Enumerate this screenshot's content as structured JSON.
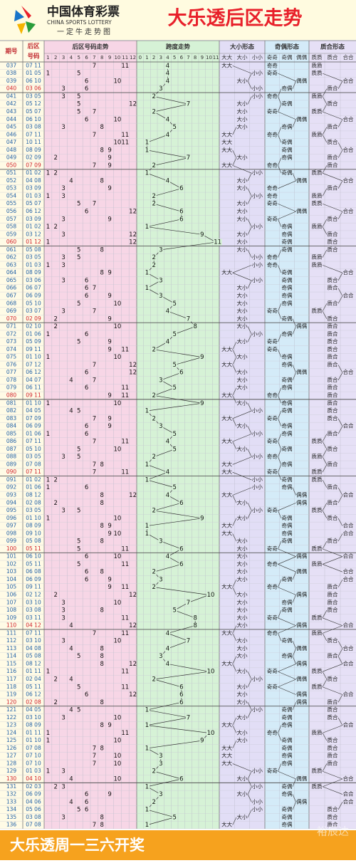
{
  "header": {
    "logo_cn": "中国体育彩票",
    "logo_en": "CHINA SPORTS LOTTERY",
    "logo_sub": "一定牛走势图",
    "title": "大乐透后区走势"
  },
  "columns": {
    "period": "期号",
    "nums_top": "后区",
    "nums_bottom": "号码",
    "balls": "后区号码走势",
    "span": "跨度走势",
    "size": "大小形态",
    "parity": "奇偶形态",
    "prime": "质合形态",
    "ball_axis": [
      1,
      2,
      3,
      4,
      5,
      6,
      7,
      8,
      9,
      10,
      11,
      12
    ],
    "span_axis": [
      0,
      1,
      2,
      3,
      4,
      5,
      6,
      7,
      8,
      9,
      10,
      11
    ],
    "size_axis": [
      "大大",
      "大小",
      "小小"
    ],
    "parity_axis": [
      "奇奇",
      "奇偶",
      "偶偶"
    ],
    "prime_axis": [
      "质质",
      "质合",
      "合合"
    ]
  },
  "rows": [
    [
      "037",
      "07 11",
      [
        7,
        11
      ],
      4,
      "大大",
      "奇奇",
      "质质"
    ],
    [
      "038",
      "01 05",
      [
        1,
        5
      ],
      4,
      "小小",
      "奇奇",
      "质质"
    ],
    [
      "039",
      "06 10",
      [
        6,
        10
      ],
      4,
      "大小",
      "偶偶",
      "合合"
    ],
    [
      "040",
      "03 06",
      [
        3,
        6
      ],
      3,
      "小小",
      "奇偶",
      "质合"
    ],
    [
      "041",
      "03 05",
      [
        3,
        5
      ],
      2,
      "小小",
      "奇奇",
      "质质"
    ],
    [
      "042",
      "05 12",
      [
        5,
        12
      ],
      7,
      "大小",
      "奇偶",
      "质合"
    ],
    [
      "043",
      "05 07",
      [
        5,
        7
      ],
      2,
      "大小",
      "奇奇",
      "质质"
    ],
    [
      "044",
      "06 10",
      [
        6,
        10
      ],
      4,
      "大小",
      "偶偶",
      "合合"
    ],
    [
      "045",
      "03 08",
      [
        3,
        8
      ],
      5,
      "大小",
      "奇偶",
      "质合"
    ],
    [
      "046",
      "07 11",
      [
        7,
        11
      ],
      4,
      "大大",
      "奇奇",
      "质质"
    ],
    [
      "047",
      "10 11",
      [
        10,
        11
      ],
      1,
      "大大",
      "奇偶",
      "质合"
    ],
    [
      "048",
      "08 09",
      [
        8,
        9
      ],
      1,
      "大大",
      "奇偶",
      "合合"
    ],
    [
      "049",
      "02 09",
      [
        2,
        9
      ],
      7,
      "大小",
      "奇偶",
      "质合"
    ],
    [
      "050",
      "07 09",
      [
        7,
        9
      ],
      2,
      "大大",
      "奇奇",
      "质合"
    ],
    [
      "051",
      "01 02",
      [
        1,
        2
      ],
      1,
      "小小",
      "奇偶",
      "质质"
    ],
    [
      "052",
      "04 08",
      [
        4,
        8
      ],
      4,
      "大小",
      "偶偶",
      "合合"
    ],
    [
      "053",
      "03 09",
      [
        3,
        9
      ],
      6,
      "大小",
      "奇奇",
      "质合"
    ],
    [
      "054",
      "01 03",
      [
        1,
        3
      ],
      2,
      "小小",
      "奇奇",
      "质质"
    ],
    [
      "055",
      "05 07",
      [
        5,
        7
      ],
      2,
      "大小",
      "奇奇",
      "质质"
    ],
    [
      "056",
      "06 12",
      [
        6,
        12
      ],
      6,
      "大小",
      "偶偶",
      "合合"
    ],
    [
      "057",
      "03 09",
      [
        3,
        9
      ],
      6,
      "大小",
      "奇奇",
      "质合"
    ],
    [
      "058",
      "01 02",
      [
        1,
        2
      ],
      1,
      "小小",
      "奇偶",
      "质质"
    ],
    [
      "059",
      "03 12",
      [
        3,
        12
      ],
      9,
      "大小",
      "奇偶",
      "质合"
    ],
    [
      "060",
      "01 12",
      [
        1,
        12
      ],
      11,
      "大小",
      "奇偶",
      "质合"
    ],
    [
      "061",
      "05 08",
      [
        5,
        8
      ],
      3,
      "大小",
      "奇偶",
      "质合"
    ],
    [
      "062",
      "03 05",
      [
        3,
        5
      ],
      2,
      "小小",
      "奇奇",
      "质质"
    ],
    [
      "063",
      "01 03",
      [
        1,
        3
      ],
      2,
      "小小",
      "奇奇",
      "质质"
    ],
    [
      "064",
      "08 09",
      [
        8,
        9
      ],
      1,
      "大大",
      "奇偶",
      "合合"
    ],
    [
      "065",
      "03 06",
      [
        3,
        6
      ],
      3,
      "小小",
      "奇偶",
      "质合"
    ],
    [
      "066",
      "06 07",
      [
        6,
        7
      ],
      1,
      "大小",
      "奇偶",
      "质合"
    ],
    [
      "067",
      "06 09",
      [
        6,
        9
      ],
      3,
      "大小",
      "奇偶",
      "合合"
    ],
    [
      "068",
      "05 10",
      [
        5,
        10
      ],
      5,
      "大小",
      "奇偶",
      "质合"
    ],
    [
      "069",
      "03 07",
      [
        3,
        7
      ],
      4,
      "大小",
      "奇奇",
      "质质"
    ],
    [
      "070",
      "02 09",
      [
        2,
        9
      ],
      7,
      "大小",
      "奇偶",
      "质合"
    ],
    [
      "071",
      "02 10",
      [
        2,
        10
      ],
      8,
      "大小",
      "偶偶",
      "质合"
    ],
    [
      "072",
      "01 06",
      [
        1,
        6
      ],
      5,
      "小小",
      "奇偶",
      "质合"
    ],
    [
      "073",
      "05 09",
      [
        5,
        9
      ],
      4,
      "大小",
      "奇奇",
      "质合"
    ],
    [
      "074",
      "09 11",
      [
        9,
        11
      ],
      2,
      "大大",
      "奇奇",
      "质合"
    ],
    [
      "075",
      "01 10",
      [
        1,
        10
      ],
      9,
      "大小",
      "奇偶",
      "质合"
    ],
    [
      "076",
      "07 12",
      [
        7,
        12
      ],
      5,
      "大大",
      "奇偶",
      "质合"
    ],
    [
      "077",
      "06 12",
      [
        6,
        12
      ],
      6,
      "大小",
      "偶偶",
      "合合"
    ],
    [
      "078",
      "04 07",
      [
        4,
        7
      ],
      3,
      "大小",
      "奇偶",
      "质合"
    ],
    [
      "079",
      "06 11",
      [
        6,
        11
      ],
      5,
      "大小",
      "奇偶",
      "质合"
    ],
    [
      "080",
      "09 11",
      [
        9,
        11
      ],
      2,
      "大大",
      "奇奇",
      "质合"
    ],
    [
      "081",
      "01 10",
      [
        1,
        10
      ],
      9,
      "大小",
      "奇偶",
      "质合"
    ],
    [
      "082",
      "04 05",
      [
        4,
        5
      ],
      1,
      "小小",
      "奇偶",
      "质合"
    ],
    [
      "083",
      "07 09",
      [
        7,
        9
      ],
      2,
      "大大",
      "奇奇",
      "质合"
    ],
    [
      "084",
      "06 09",
      [
        6,
        9
      ],
      3,
      "大小",
      "奇偶",
      "合合"
    ],
    [
      "085",
      "01 06",
      [
        1,
        6
      ],
      5,
      "小小",
      "奇偶",
      "质合"
    ],
    [
      "086",
      "07 11",
      [
        7,
        11
      ],
      4,
      "大大",
      "奇奇",
      "质质"
    ],
    [
      "087",
      "05 10",
      [
        5,
        10
      ],
      5,
      "大小",
      "奇偶",
      "质合"
    ],
    [
      "088",
      "03 05",
      [
        3,
        5
      ],
      2,
      "小小",
      "奇奇",
      "质质"
    ],
    [
      "089",
      "07 08",
      [
        7,
        8
      ],
      1,
      "大大",
      "奇偶",
      "质合"
    ],
    [
      "090",
      "07 11",
      [
        7,
        11
      ],
      4,
      "大大",
      "奇奇",
      "质质"
    ],
    [
      "091",
      "01 02",
      [
        1,
        2
      ],
      1,
      "小小",
      "奇偶",
      "质质"
    ],
    [
      "092",
      "01 06",
      [
        1,
        6
      ],
      5,
      "小小",
      "奇偶",
      "质合"
    ],
    [
      "093",
      "08 12",
      [
        8,
        12
      ],
      4,
      "大大",
      "偶偶",
      "合合"
    ],
    [
      "094",
      "02 08",
      [
        2,
        8
      ],
      6,
      "大小",
      "偶偶",
      "质合"
    ],
    [
      "095",
      "03 05",
      [
        3,
        5
      ],
      2,
      "小小",
      "奇奇",
      "质质"
    ],
    [
      "096",
      "01 10",
      [
        1,
        10
      ],
      9,
      "大小",
      "奇偶",
      "质合"
    ],
    [
      "097",
      "08 09",
      [
        8,
        9
      ],
      1,
      "大大",
      "奇偶",
      "合合"
    ],
    [
      "098",
      "09 10",
      [
        9,
        10
      ],
      1,
      "大大",
      "奇偶",
      "合合"
    ],
    [
      "099",
      "05 08",
      [
        5,
        8
      ],
      3,
      "大小",
      "奇偶",
      "质合"
    ],
    [
      "100",
      "05 11",
      [
        5,
        11
      ],
      6,
      "大小",
      "奇奇",
      "质质"
    ],
    [
      "101",
      "06 10",
      [
        6,
        10
      ],
      4,
      "大小",
      "偶偶",
      "合合"
    ],
    [
      "102",
      "05 11",
      [
        5,
        11
      ],
      6,
      "大小",
      "奇奇",
      "质质"
    ],
    [
      "103",
      "06 08",
      [
        6,
        8
      ],
      2,
      "大小",
      "偶偶",
      "合合"
    ],
    [
      "104",
      "06 09",
      [
        6,
        9
      ],
      3,
      "大小",
      "奇偶",
      "合合"
    ],
    [
      "105",
      "09 11",
      [
        9,
        11
      ],
      2,
      "大大",
      "奇奇",
      "质合"
    ],
    [
      "106",
      "02 12",
      [
        2,
        12
      ],
      10,
      "大小",
      "偶偶",
      "质合"
    ],
    [
      "107",
      "03 10",
      [
        3,
        10
      ],
      7,
      "大小",
      "奇偶",
      "质合"
    ],
    [
      "108",
      "03 08",
      [
        3,
        8
      ],
      5,
      "大小",
      "奇偶",
      "质合"
    ],
    [
      "109",
      "03 11",
      [
        3,
        11
      ],
      8,
      "大小",
      "奇奇",
      "质质"
    ],
    [
      "110",
      "04 12",
      [
        4,
        12
      ],
      8,
      "大小",
      "偶偶",
      "合合"
    ],
    [
      "111",
      "07 11",
      [
        7,
        11
      ],
      4,
      "大大",
      "奇奇",
      "质质"
    ],
    [
      "112",
      "03 10",
      [
        3,
        10
      ],
      7,
      "大小",
      "奇偶",
      "质合"
    ],
    [
      "113",
      "04 08",
      [
        4,
        8
      ],
      4,
      "大小",
      "偶偶",
      "合合"
    ],
    [
      "114",
      "05 08",
      [
        5,
        8
      ],
      3,
      "大小",
      "奇偶",
      "质合"
    ],
    [
      "115",
      "08 12",
      [
        8,
        12
      ],
      4,
      "大大",
      "偶偶",
      "合合"
    ],
    [
      "116",
      "01 11",
      [
        1,
        11
      ],
      10,
      "大小",
      "奇奇",
      "质质"
    ],
    [
      "117",
      "02 04",
      [
        2,
        4
      ],
      2,
      "小小",
      "偶偶",
      "质合"
    ],
    [
      "118",
      "05 11",
      [
        5,
        11
      ],
      6,
      "大小",
      "奇奇",
      "质质"
    ],
    [
      "119",
      "06 12",
      [
        6,
        12
      ],
      6,
      "大小",
      "偶偶",
      "合合"
    ],
    [
      "120",
      "02 08",
      [
        2,
        8
      ],
      6,
      "大小",
      "偶偶",
      "质合"
    ],
    [
      "121",
      "04 05",
      [
        4,
        5
      ],
      1,
      "小小",
      "奇偶",
      "质合"
    ],
    [
      "122",
      "03 10",
      [
        3,
        10
      ],
      7,
      "大小",
      "奇偶",
      "质合"
    ],
    [
      "123",
      "08 09",
      [
        8,
        9
      ],
      1,
      "大大",
      "奇偶",
      "合合"
    ],
    [
      "124",
      "01 11",
      [
        1,
        11
      ],
      10,
      "大小",
      "奇奇",
      "质质"
    ],
    [
      "125",
      "01 10",
      [
        1,
        10
      ],
      9,
      "大小",
      "奇偶",
      "质合"
    ],
    [
      "126",
      "07 08",
      [
        7,
        8
      ],
      1,
      "大大",
      "奇偶",
      "质合"
    ],
    [
      "127",
      "07 10",
      [
        7,
        10
      ],
      3,
      "大大",
      "奇偶",
      "质合"
    ],
    [
      "128",
      "07 10",
      [
        7,
        10
      ],
      3,
      "大大",
      "奇偶",
      "质合"
    ],
    [
      "129",
      "01 03",
      [
        1,
        3
      ],
      2,
      "小小",
      "奇奇",
      "质质"
    ],
    [
      "130",
      "04 10",
      [
        4,
        10
      ],
      6,
      "大小",
      "偶偶",
      "合合"
    ],
    [
      "131",
      "02 03",
      [
        2,
        3
      ],
      1,
      "小小",
      "奇偶",
      "质质"
    ],
    [
      "132",
      "06 09",
      [
        6,
        9
      ],
      3,
      "大小",
      "奇偶",
      "合合"
    ],
    [
      "133",
      "04 06",
      [
        4,
        6
      ],
      2,
      "小小",
      "偶偶",
      "合合"
    ],
    [
      "134",
      "05 06",
      [
        5,
        6
      ],
      1,
      "小小",
      "奇偶",
      "质合"
    ],
    [
      "135",
      "03 08",
      [
        3,
        8
      ],
      5,
      "大小",
      "奇偶",
      "质合"
    ],
    [
      "136",
      "07 08",
      [
        7,
        8
      ],
      1,
      "大大",
      "奇偶",
      "质合"
    ]
  ],
  "footer": {
    "text": "大乐透周一三六开奖",
    "watermark": "裕辰达"
  }
}
